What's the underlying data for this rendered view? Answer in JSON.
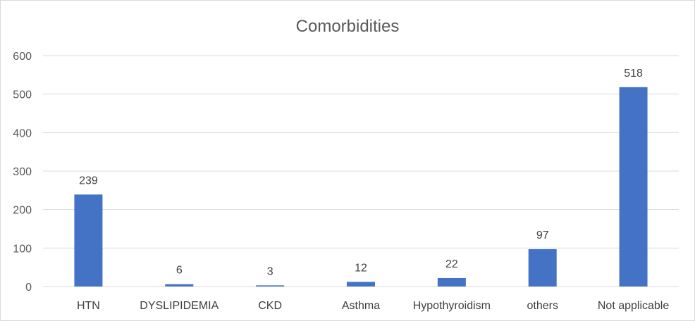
{
  "chart_data": {
    "type": "bar",
    "title": "Comorbidities",
    "xlabel": "",
    "ylabel": "",
    "categories": [
      "HTN",
      "DYSLIPIDEMIA",
      "CKD",
      "Asthma",
      "Hypothyroidism",
      "others",
      "Not applicable"
    ],
    "values": [
      239,
      6,
      3,
      12,
      22,
      97,
      518
    ],
    "ylim": [
      0,
      600
    ],
    "yticks": [
      0,
      100,
      200,
      300,
      400,
      500,
      600
    ],
    "grid": true,
    "legend": "none",
    "bar_color": "#4472C4",
    "data_labels": true
  }
}
